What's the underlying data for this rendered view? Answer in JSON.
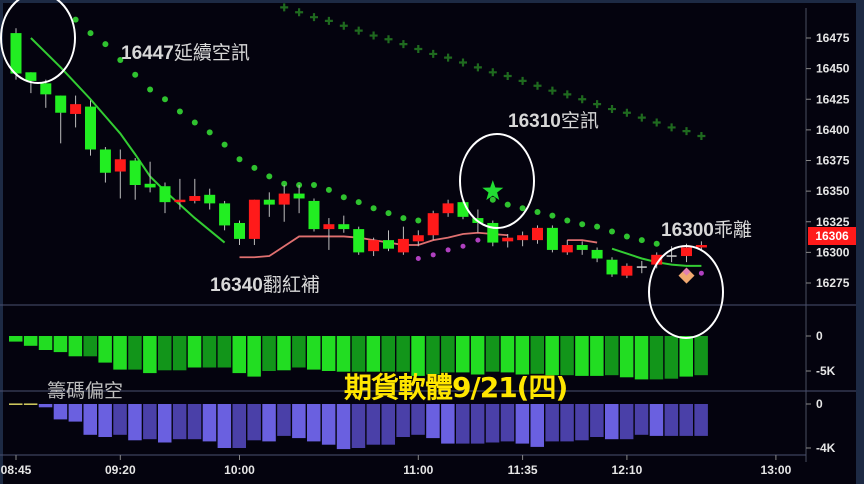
{
  "chart_data": {
    "type": "candlestick",
    "interval_minutes": 5,
    "start_time": "08:45",
    "price_axis": {
      "ticks": [
        16475,
        16450,
        16425,
        16400,
        16375,
        16350,
        16325,
        16300,
        16275
      ],
      "ylim": [
        16250,
        16500
      ]
    },
    "time_axis": {
      "ticks": [
        "08:45",
        "09:20",
        "10:00",
        "11:00",
        "11:35",
        "12:10",
        "13:00"
      ]
    },
    "last_price": "16306",
    "colors": {
      "up": "#ff1a1a",
      "down": "#22ee22",
      "sar": "#2fc22f",
      "cross": "#1f6a1f",
      "ma": "#33cc33",
      "pink_line": "#e07070",
      "purple_dots": "#b040c0",
      "panel1": "#22dd22",
      "panel1_dark": "#12951a",
      "panel2": "#6a60e0",
      "panel2_dark": "#4a40a8",
      "promo": "#ffe600",
      "last_price_bg": "#ff1a1a"
    },
    "ohlc": [
      [
        16479,
        16483,
        16441,
        16446
      ],
      [
        16447,
        16447,
        16430,
        16440
      ],
      [
        16438,
        16441,
        16418,
        16429
      ],
      [
        16428,
        16428,
        16389,
        16414
      ],
      [
        16413,
        16428,
        16402,
        16421
      ],
      [
        16419,
        16424,
        16379,
        16384
      ],
      [
        16384,
        16386,
        16357,
        16365
      ],
      [
        16366,
        16384,
        16344,
        16376
      ],
      [
        16375,
        16377,
        16343,
        16355
      ],
      [
        16356,
        16374,
        16349,
        16353
      ],
      [
        16354,
        16357,
        16332,
        16341
      ],
      [
        16341,
        16360,
        16335,
        16343
      ],
      [
        16342,
        16360,
        16340,
        16346
      ],
      [
        16347,
        16352,
        16335,
        16340
      ],
      [
        16340,
        16342,
        16318,
        16322
      ],
      [
        16324,
        16326,
        16306,
        16311
      ],
      [
        16311,
        16343,
        16306,
        16343
      ],
      [
        16343,
        16349,
        16329,
        16339
      ],
      [
        16339,
        16355,
        16325,
        16348
      ],
      [
        16348,
        16355,
        16332,
        16344
      ],
      [
        16342,
        16344,
        16317,
        16319
      ],
      [
        16319,
        16328,
        16302,
        16323
      ],
      [
        16323,
        16330,
        16316,
        16319
      ],
      [
        16319,
        16321,
        16298,
        16300
      ],
      [
        16301,
        16312,
        16297,
        16310
      ],
      [
        16310,
        16318,
        16301,
        16303
      ],
      [
        16300,
        16321,
        16298,
        16311
      ],
      [
        16309,
        16318,
        16305,
        16314
      ],
      [
        16314,
        16334,
        16310,
        16332
      ],
      [
        16332,
        16343,
        16329,
        16340
      ],
      [
        16341,
        16344,
        16327,
        16329
      ],
      [
        16328,
        16335,
        16316,
        16324
      ],
      [
        16324,
        16326,
        16305,
        16308
      ],
      [
        16309,
        16315,
        16304,
        16312
      ],
      [
        16310,
        16317,
        16305,
        16314
      ],
      [
        16310,
        16322,
        16307,
        16320
      ],
      [
        16320,
        16322,
        16300,
        16302
      ],
      [
        16300,
        16310,
        16298,
        16306
      ],
      [
        16306,
        16309,
        16298,
        16302
      ],
      [
        16302,
        16304,
        16292,
        16295
      ],
      [
        16294,
        16296,
        16280,
        16282
      ],
      [
        16281,
        16291,
        16279,
        16289
      ],
      [
        16288,
        16293,
        16283,
        16288
      ],
      [
        16290,
        16300,
        16287,
        16298
      ],
      [
        16297,
        16305,
        16292,
        16297
      ],
      [
        16297,
        16307,
        16292,
        16304
      ],
      [
        16304,
        16309,
        16302,
        16306
      ]
    ],
    "sar_dots": [
      null,
      null,
      null,
      null,
      16490,
      16479,
      16470,
      16457,
      16445,
      16433,
      16425,
      16415,
      16406,
      16398,
      16388,
      16376,
      16369,
      16362,
      16356,
      16355,
      16355,
      16351,
      16345,
      16341,
      16336,
      16332,
      16328,
      16326,
      null,
      null,
      null,
      null,
      16343,
      16339,
      16336,
      16333,
      16330,
      16326,
      16323,
      16321,
      16317,
      16313,
      16310,
      16307,
      null,
      null,
      null
    ],
    "cross_marks": [
      null,
      null,
      null,
      null,
      null,
      null,
      null,
      null,
      null,
      null,
      null,
      null,
      null,
      null,
      null,
      null,
      null,
      null,
      16500,
      16496,
      16492,
      16489,
      16485,
      16481,
      16477,
      16474,
      16470,
      16466,
      16462,
      16459,
      16455,
      16451,
      16447,
      16444,
      16440,
      16436,
      16432,
      16429,
      16425,
      16421,
      16417,
      16414,
      16410,
      16406,
      16402,
      16399,
      16395
    ],
    "purple_dots": [
      null,
      null,
      null,
      null,
      null,
      null,
      null,
      null,
      null,
      null,
      null,
      null,
      null,
      null,
      null,
      null,
      null,
      null,
      null,
      null,
      null,
      null,
      null,
      null,
      null,
      null,
      null,
      16295,
      16298,
      16302,
      16305,
      16310,
      null,
      null,
      null,
      null,
      null,
      null,
      null,
      null,
      null,
      null,
      null,
      null,
      null,
      null,
      16283
    ],
    "ma_line": [
      null,
      16475,
      16463,
      16451,
      16438,
      16425,
      16411,
      16397,
      16380,
      16362,
      16350,
      16339,
      16328,
      16318,
      16308,
      null,
      null,
      null,
      null,
      null,
      null,
      null,
      null,
      null,
      null,
      null,
      null,
      null,
      null,
      null,
      null,
      null,
      null,
      null,
      null,
      null,
      null,
      null,
      null,
      null,
      16303,
      16299,
      16295,
      16292,
      16290,
      16289,
      16289
    ],
    "pink_line": [
      null,
      null,
      null,
      null,
      null,
      null,
      null,
      null,
      null,
      null,
      null,
      null,
      null,
      null,
      null,
      16296,
      16296,
      16297,
      16305,
      16313,
      16313,
      16313,
      16313,
      16312,
      16310,
      16308,
      16306,
      16306,
      16310,
      16312,
      16315,
      16316,
      16315,
      16314,
      null,
      null,
      null,
      16310,
      16310,
      16308,
      null,
      null,
      null,
      null,
      null,
      null,
      null
    ],
    "signals": [
      {
        "type": "star",
        "index": 32,
        "price": 16350
      },
      {
        "type": "diamond",
        "index": 45,
        "price": 16281
      }
    ],
    "panel1": {
      "ticks": [
        "0",
        "-5K"
      ],
      "unit": "K",
      "values": [
        -0.8,
        -1.4,
        -2.0,
        -2.3,
        -2.9,
        -2.9,
        -3.8,
        -4.8,
        -4.8,
        -5.3,
        -4.9,
        -4.9,
        -4.5,
        -4.5,
        -4.5,
        -5.3,
        -5.8,
        -5.0,
        -4.9,
        -4.5,
        -4.8,
        -5.0,
        -5.1,
        -5.1,
        -5.1,
        -5.1,
        -5.1,
        -5.7,
        -5.5,
        -5.2,
        -5.2,
        -5.5,
        -5.1,
        -5.2,
        -5.5,
        -5.4,
        -5.6,
        -5.6,
        -5.7,
        -5.7,
        -5.6,
        -5.9,
        -6.2,
        -6.2,
        -6.1,
        -5.8,
        -5.6
      ]
    },
    "panel2": {
      "ticks": [
        "0",
        "-4K"
      ],
      "unit": "K",
      "values": [
        0.05,
        0.05,
        -0.3,
        -1.4,
        -1.6,
        -2.8,
        -3.0,
        -2.8,
        -3.3,
        -3.2,
        -3.5,
        -3.2,
        -3.2,
        -3.4,
        -4.0,
        -4.0,
        -3.3,
        -3.4,
        -2.9,
        -3.1,
        -3.4,
        -3.7,
        -4.1,
        -4.0,
        -3.7,
        -3.7,
        -3.0,
        -2.8,
        -3.1,
        -3.6,
        -3.6,
        -3.6,
        -3.5,
        -3.4,
        -3.6,
        -3.9,
        -3.4,
        -3.4,
        -3.3,
        -3.0,
        -3.2,
        -3.2,
        -2.8,
        -2.9,
        -2.9,
        -2.9,
        -2.9
      ]
    }
  },
  "annotations": {
    "a1_num": "16447",
    "a1_text": "延續空訊",
    "a2_num": "16310",
    "a2_text": "空訊",
    "a3_num": "16300",
    "a3_text": "乖離",
    "a4_num": "16340",
    "a4_text": "翻紅補",
    "chip": "籌碼偏空",
    "promo": "期貨軟體9/21(四)"
  }
}
